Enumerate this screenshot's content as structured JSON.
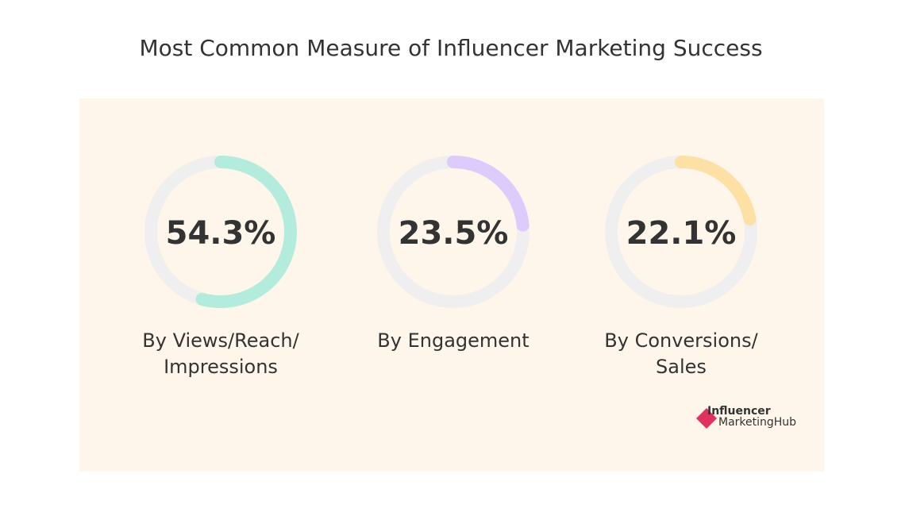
{
  "chart_data": {
    "type": "ring",
    "title": "Most Common Measure of Influencer Marketing Success",
    "categories": [
      "By Views/Reach/ Impressions",
      "By Engagement",
      "By Conversions/ Sales"
    ],
    "values": [
      54.3,
      23.5,
      22.1
    ],
    "value_labels": [
      "54.3%",
      "23.5%",
      "22.1%"
    ],
    "colors": [
      "#b3ecdc",
      "#dccbfb",
      "#fde0a4"
    ],
    "track_color": "#efefef",
    "ylim": [
      0,
      100
    ]
  },
  "logo": {
    "line1": "Influencer",
    "line2": "MarketingHub"
  }
}
